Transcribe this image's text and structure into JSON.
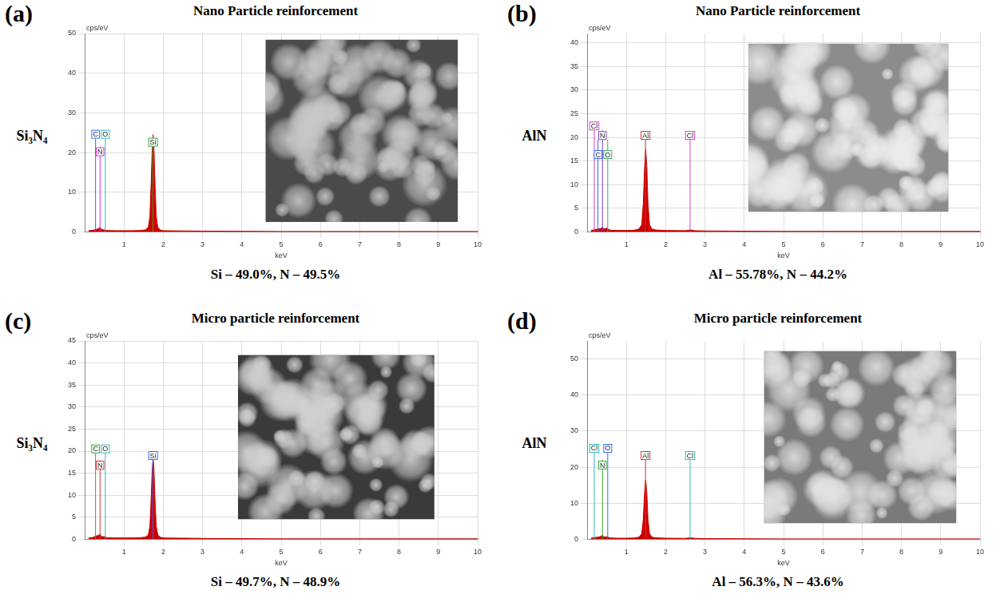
{
  "chart_data": [
    {
      "type": "area",
      "panel": "(a)",
      "title": "Nano Particle reinforcement",
      "side_label": "Si₃N₄",
      "caption": "Si – 49.0%, N – 49.5%",
      "ylabel": "cps/eV",
      "xlabel": "keV",
      "color": "#cc0000",
      "x": [
        0.1,
        0.2,
        0.28,
        0.35,
        0.39,
        0.43,
        0.5,
        0.55,
        0.6,
        0.8,
        1.0,
        1.2,
        1.4,
        1.55,
        1.62,
        1.66,
        1.69,
        1.72,
        1.74,
        1.76,
        1.79,
        1.82,
        1.86,
        1.92,
        2.0,
        2.5,
        3,
        4,
        5,
        6,
        7,
        8,
        9,
        10
      ],
      "values": [
        0.3,
        0.4,
        0.6,
        0.8,
        1.2,
        0.6,
        0.5,
        0.4,
        0.35,
        0.3,
        0.3,
        0.3,
        0.35,
        0.5,
        1.2,
        4,
        12,
        21,
        24.5,
        22,
        12,
        4,
        1.2,
        0.5,
        0.3,
        0.25,
        0.2,
        0.15,
        0.1,
        0.1,
        0.1,
        0.1,
        0.1,
        0.1
      ],
      "annotations": [
        {
          "label": "C",
          "x": 0.277,
          "y": 23.5,
          "color": "#3366ff"
        },
        {
          "label": "N",
          "x": 0.392,
          "y": 21.5,
          "color": "#cc33cc"
        },
        {
          "label": "O",
          "x": 0.525,
          "y": 23.5,
          "color": "#33bbbb"
        },
        {
          "label": "Si",
          "x": 1.74,
          "y": 21.5,
          "color": "#33aa33"
        }
      ],
      "xlim": [
        0,
        10
      ],
      "xticks": [
        1,
        2,
        3,
        4,
        5,
        6,
        7,
        8,
        9,
        10
      ],
      "ylim": [
        0,
        50
      ],
      "yticks": [
        0,
        10,
        20,
        30,
        40,
        50
      ],
      "grid": true
    },
    {
      "type": "area",
      "panel": "(b)",
      "title": "Nano Particle reinforcement",
      "side_label": "AlN",
      "caption": "Al – 55.78%, N – 44.2%",
      "ylabel": "cps/eV",
      "xlabel": "keV",
      "color": "#cc0000",
      "x": [
        0.1,
        0.2,
        0.28,
        0.35,
        0.39,
        0.43,
        0.5,
        0.55,
        0.6,
        0.8,
        1.0,
        1.2,
        1.32,
        1.39,
        1.43,
        1.46,
        1.49,
        1.52,
        1.55,
        1.59,
        1.65,
        1.75,
        2.0,
        2.5,
        2.62,
        2.75,
        3,
        4,
        5,
        6,
        7,
        8,
        9,
        10
      ],
      "values": [
        0.3,
        0.5,
        0.6,
        0.7,
        1.0,
        0.6,
        0.8,
        0.5,
        0.35,
        0.3,
        0.3,
        0.35,
        0.6,
        1.5,
        6,
        13,
        17.5,
        14,
        6,
        1.5,
        0.6,
        0.4,
        0.3,
        0.25,
        0.4,
        0.25,
        0.2,
        0.15,
        0.1,
        0.1,
        0.1,
        0.1,
        0.1,
        0.1
      ],
      "annotations": [
        {
          "label": "Cl",
          "x": 0.183,
          "y": 21.5,
          "color": "#cc44cc"
        },
        {
          "label": "N",
          "x": 0.392,
          "y": 21.5,
          "color": "#7744cc"
        },
        {
          "label": "C",
          "x": 0.277,
          "y": 19.5,
          "color": "#3366ff"
        },
        {
          "label": "O",
          "x": 0.525,
          "y": 19.5,
          "color": "#33aa66"
        },
        {
          "label": "Al",
          "x": 1.487,
          "y": 19.5,
          "color": "#cc3333"
        },
        {
          "label": "Cl",
          "x": 2.622,
          "y": 19.5,
          "color": "#cc44cc"
        }
      ],
      "xlim": [
        0,
        10
      ],
      "xticks": [
        1,
        2,
        3,
        4,
        5,
        6,
        7,
        8,
        9,
        10
      ],
      "ylim": [
        0,
        42
      ],
      "yticks": [
        0,
        5,
        10,
        15,
        20,
        25,
        30,
        35,
        40
      ],
      "grid": true
    },
    {
      "type": "area",
      "panel": "(c)",
      "title": "Micro particle reinforcement",
      "side_label": "Si₃N₄",
      "caption": "Si – 49.7%, N – 48.9%",
      "ylabel": "cps/eV",
      "xlabel": "keV",
      "color": "#cc0000",
      "x": [
        0.1,
        0.2,
        0.28,
        0.35,
        0.39,
        0.43,
        0.5,
        0.55,
        0.6,
        0.8,
        1.0,
        1.2,
        1.4,
        1.55,
        1.62,
        1.66,
        1.69,
        1.72,
        1.74,
        1.76,
        1.79,
        1.82,
        1.86,
        1.92,
        2.0,
        2.5,
        3,
        4,
        5,
        6,
        7,
        8,
        9,
        10
      ],
      "values": [
        0.3,
        0.4,
        0.7,
        0.9,
        1.1,
        0.6,
        0.6,
        0.4,
        0.35,
        0.3,
        0.3,
        0.3,
        0.35,
        0.5,
        1.0,
        3,
        9,
        16,
        18.5,
        16.5,
        9,
        3,
        1.0,
        0.5,
        0.3,
        0.25,
        0.2,
        0.15,
        0.1,
        0.1,
        0.1,
        0.1,
        0.1,
        0.1
      ],
      "annotations": [
        {
          "label": "C",
          "x": 0.277,
          "y": 19.5,
          "color": "#33aa33"
        },
        {
          "label": "N",
          "x": 0.392,
          "y": 18,
          "color": "#dd3333"
        },
        {
          "label": "O",
          "x": 0.525,
          "y": 19.5,
          "color": "#33bbbb"
        },
        {
          "label": "Si",
          "x": 1.74,
          "y": 18,
          "color": "#3366ff"
        }
      ],
      "xlim": [
        0,
        10
      ],
      "xticks": [
        1,
        2,
        3,
        4,
        5,
        6,
        7,
        8,
        9,
        10
      ],
      "ylim": [
        0,
        45
      ],
      "yticks": [
        0,
        5,
        10,
        15,
        20,
        25,
        30,
        35,
        40,
        45
      ],
      "grid": true
    },
    {
      "type": "area",
      "panel": "(d)",
      "title": "Micro particle reinforcement",
      "side_label": "AlN",
      "caption": "Al – 56.3%, N – 43.6%",
      "ylabel": "cps/eV",
      "xlabel": "keV",
      "color": "#cc0000",
      "x": [
        0.1,
        0.2,
        0.28,
        0.35,
        0.39,
        0.43,
        0.5,
        0.55,
        0.6,
        0.8,
        1.0,
        1.2,
        1.32,
        1.39,
        1.43,
        1.46,
        1.49,
        1.52,
        1.55,
        1.59,
        1.65,
        1.75,
        2.0,
        2.5,
        2.62,
        2.75,
        3,
        4,
        5,
        6,
        7,
        8,
        9,
        10
      ],
      "values": [
        0.3,
        0.5,
        0.6,
        0.8,
        1.1,
        0.6,
        0.7,
        0.5,
        0.35,
        0.3,
        0.3,
        0.35,
        0.6,
        1.5,
        5.5,
        12.5,
        16.5,
        13,
        5.5,
        1.5,
        0.6,
        0.4,
        0.3,
        0.25,
        0.4,
        0.25,
        0.2,
        0.15,
        0.1,
        0.1,
        0.1,
        0.1,
        0.1,
        0.1
      ],
      "annotations": [
        {
          "label": "Cl",
          "x": 0.183,
          "y": 24,
          "color": "#33bbbb"
        },
        {
          "label": "N",
          "x": 0.392,
          "y": 22,
          "color": "#33aa33"
        },
        {
          "label": "O",
          "x": 0.525,
          "y": 24,
          "color": "#3366ff"
        },
        {
          "label": "Al",
          "x": 1.487,
          "y": 22,
          "color": "#dd3333"
        },
        {
          "label": "Cl",
          "x": 2.622,
          "y": 22,
          "color": "#33bbbb"
        }
      ],
      "xlim": [
        0,
        10
      ],
      "xticks": [
        1,
        2,
        3,
        4,
        5,
        6,
        7,
        8,
        9,
        10
      ],
      "ylim": [
        0,
        55
      ],
      "yticks": [
        0,
        10,
        20,
        30,
        40,
        50
      ],
      "grid": true
    }
  ]
}
